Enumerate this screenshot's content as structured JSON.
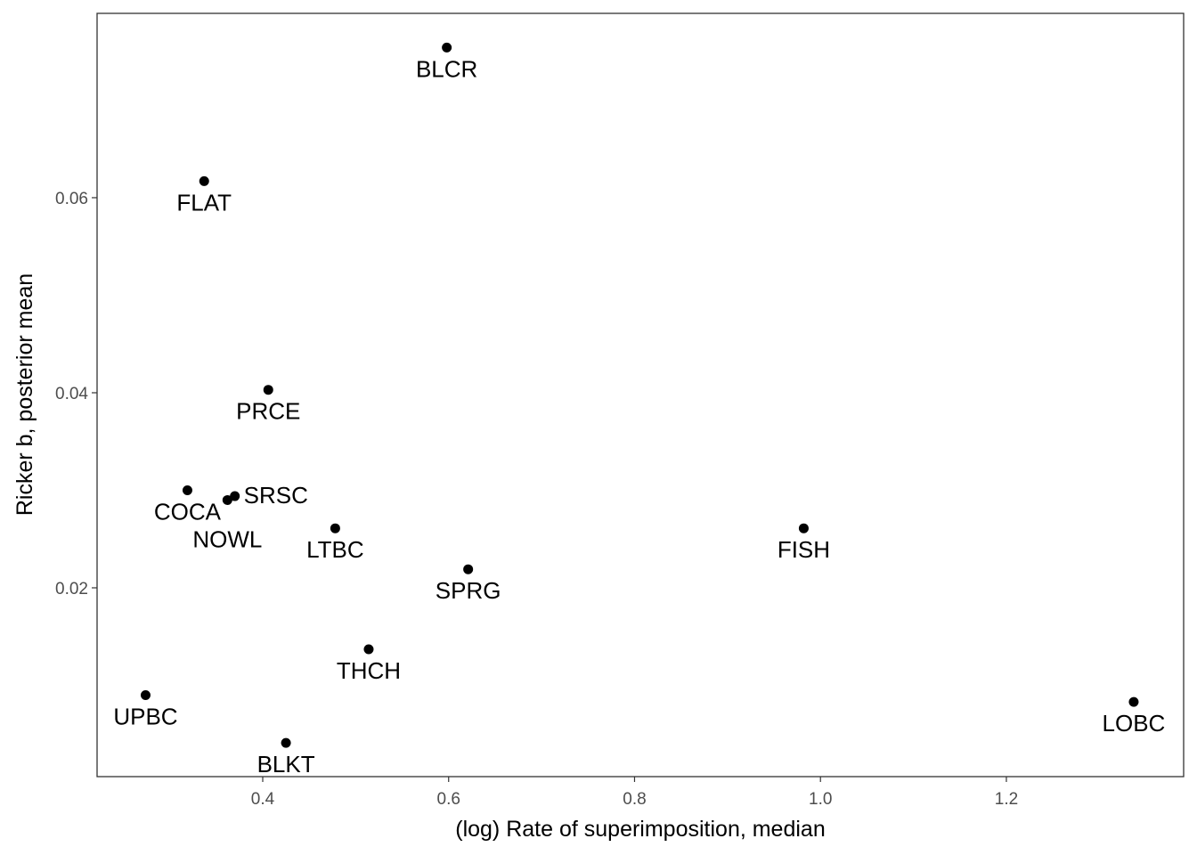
{
  "chart_data": {
    "type": "scatter",
    "title": "",
    "xlabel": "(log) Rate of superimposition, median",
    "ylabel": "Ricker b, posterior mean",
    "xlim": [
      0.2218,
      1.3907
    ],
    "ylim": [
      0.00064,
      0.0789
    ],
    "xticks": [
      {
        "v": 0.4,
        "label": "0.4"
      },
      {
        "v": 0.6,
        "label": "0.6"
      },
      {
        "v": 0.8,
        "label": "0.8"
      },
      {
        "v": 1.0,
        "label": "1.0"
      },
      {
        "v": 1.2,
        "label": "1.2"
      }
    ],
    "yticks": [
      {
        "v": 0.02,
        "label": "0.02"
      },
      {
        "v": 0.04,
        "label": "0.04"
      },
      {
        "v": 0.06,
        "label": "0.06"
      }
    ],
    "grid": false,
    "points": [
      {
        "label": "BLCR",
        "x": 0.598,
        "y": 0.0754
      },
      {
        "label": "FLAT",
        "x": 0.337,
        "y": 0.0617
      },
      {
        "label": "PRCE",
        "x": 0.406,
        "y": 0.0403
      },
      {
        "label": "COCA",
        "x": 0.319,
        "y": 0.03
      },
      {
        "label": "NOWL",
        "x": 0.362,
        "y": 0.029
      },
      {
        "label": "SRSC",
        "x": 0.37,
        "y": 0.0294
      },
      {
        "label": "LTBC",
        "x": 0.478,
        "y": 0.0261
      },
      {
        "label": "FISH",
        "x": 0.982,
        "y": 0.0261
      },
      {
        "label": "SPRG",
        "x": 0.621,
        "y": 0.0219
      },
      {
        "label": "THCH",
        "x": 0.514,
        "y": 0.0137
      },
      {
        "label": "UPBC",
        "x": 0.274,
        "y": 0.009
      },
      {
        "label": "BLKT",
        "x": 0.425,
        "y": 0.0041
      },
      {
        "label": "LOBC",
        "x": 1.337,
        "y": 0.0083
      }
    ],
    "point_color": "#000000"
  }
}
